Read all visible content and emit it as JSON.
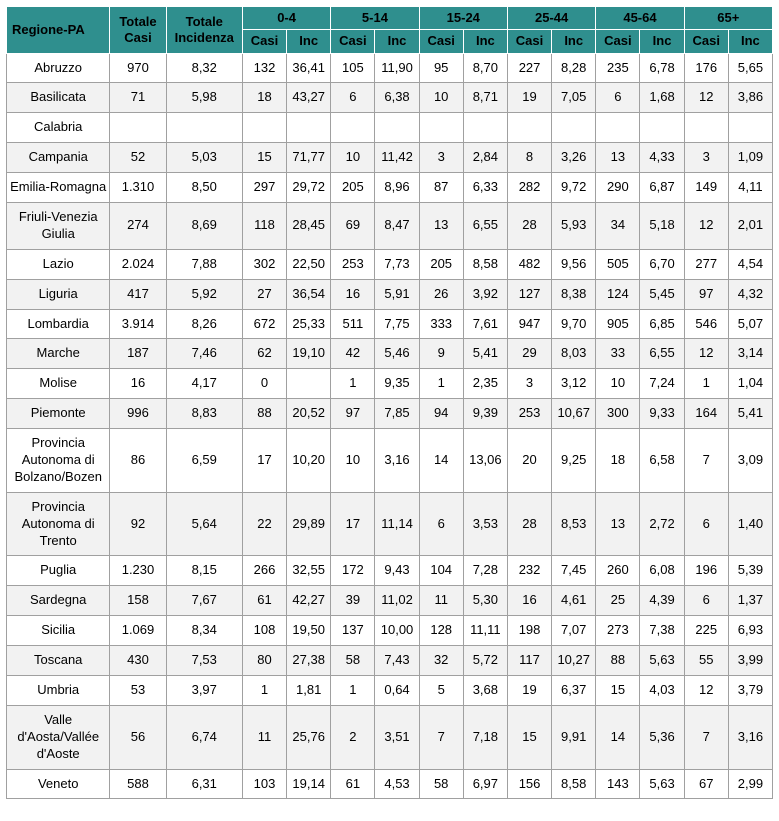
{
  "chart_data": {
    "type": "table",
    "header": {
      "region": "Regione-PA",
      "total_cases": "Totale Casi",
      "total_incidence": "Totale Incidenza",
      "age_groups": [
        "0-4",
        "5-14",
        "15-24",
        "25-44",
        "45-64",
        "65+"
      ],
      "subcolumns": [
        "Casi",
        "Inc"
      ]
    },
    "rows": [
      {
        "region": "Abruzzo",
        "values": [
          "970",
          "8,32",
          "132",
          "36,41",
          "105",
          "11,90",
          "95",
          "8,70",
          "227",
          "8,28",
          "235",
          "6,78",
          "176",
          "5,65"
        ]
      },
      {
        "region": "Basilicata",
        "values": [
          "71",
          "5,98",
          "18",
          "43,27",
          "6",
          "6,38",
          "10",
          "8,71",
          "19",
          "7,05",
          "6",
          "1,68",
          "12",
          "3,86"
        ]
      },
      {
        "region": "Calabria",
        "values": [
          "",
          "",
          "",
          "",
          "",
          "",
          "",
          "",
          "",
          "",
          "",
          "",
          "",
          ""
        ]
      },
      {
        "region": "Campania",
        "values": [
          "52",
          "5,03",
          "15",
          "71,77",
          "10",
          "11,42",
          "3",
          "2,84",
          "8",
          "3,26",
          "13",
          "4,33",
          "3",
          "1,09"
        ]
      },
      {
        "region": "Emilia-Romagna",
        "values": [
          "1.310",
          "8,50",
          "297",
          "29,72",
          "205",
          "8,96",
          "87",
          "6,33",
          "282",
          "9,72",
          "290",
          "6,87",
          "149",
          "4,11"
        ]
      },
      {
        "region": "Friuli-Venezia Giulia",
        "values": [
          "274",
          "8,69",
          "118",
          "28,45",
          "69",
          "8,47",
          "13",
          "6,55",
          "28",
          "5,93",
          "34",
          "5,18",
          "12",
          "2,01"
        ]
      },
      {
        "region": "Lazio",
        "values": [
          "2.024",
          "7,88",
          "302",
          "22,50",
          "253",
          "7,73",
          "205",
          "8,58",
          "482",
          "9,56",
          "505",
          "6,70",
          "277",
          "4,54"
        ]
      },
      {
        "region": "Liguria",
        "values": [
          "417",
          "5,92",
          "27",
          "36,54",
          "16",
          "5,91",
          "26",
          "3,92",
          "127",
          "8,38",
          "124",
          "5,45",
          "97",
          "4,32"
        ]
      },
      {
        "region": "Lombardia",
        "values": [
          "3.914",
          "8,26",
          "672",
          "25,33",
          "511",
          "7,75",
          "333",
          "7,61",
          "947",
          "9,70",
          "905",
          "6,85",
          "546",
          "5,07"
        ]
      },
      {
        "region": "Marche",
        "values": [
          "187",
          "7,46",
          "62",
          "19,10",
          "42",
          "5,46",
          "9",
          "5,41",
          "29",
          "8,03",
          "33",
          "6,55",
          "12",
          "3,14"
        ]
      },
      {
        "region": "Molise",
        "values": [
          "16",
          "4,17",
          "0",
          "",
          "1",
          "9,35",
          "1",
          "2,35",
          "3",
          "3,12",
          "10",
          "7,24",
          "1",
          "1,04"
        ]
      },
      {
        "region": "Piemonte",
        "values": [
          "996",
          "8,83",
          "88",
          "20,52",
          "97",
          "7,85",
          "94",
          "9,39",
          "253",
          "10,67",
          "300",
          "9,33",
          "164",
          "5,41"
        ]
      },
      {
        "region": "Provincia Autonoma di Bolzano/Bozen",
        "values": [
          "86",
          "6,59",
          "17",
          "10,20",
          "10",
          "3,16",
          "14",
          "13,06",
          "20",
          "9,25",
          "18",
          "6,58",
          "7",
          "3,09"
        ]
      },
      {
        "region": "Provincia Autonoma di Trento",
        "values": [
          "92",
          "5,64",
          "22",
          "29,89",
          "17",
          "11,14",
          "6",
          "3,53",
          "28",
          "8,53",
          "13",
          "2,72",
          "6",
          "1,40"
        ]
      },
      {
        "region": "Puglia",
        "values": [
          "1.230",
          "8,15",
          "266",
          "32,55",
          "172",
          "9,43",
          "104",
          "7,28",
          "232",
          "7,45",
          "260",
          "6,08",
          "196",
          "5,39"
        ]
      },
      {
        "region": "Sardegna",
        "values": [
          "158",
          "7,67",
          "61",
          "42,27",
          "39",
          "11,02",
          "11",
          "5,30",
          "16",
          "4,61",
          "25",
          "4,39",
          "6",
          "1,37"
        ]
      },
      {
        "region": "Sicilia",
        "values": [
          "1.069",
          "8,34",
          "108",
          "19,50",
          "137",
          "10,00",
          "128",
          "11,11",
          "198",
          "7,07",
          "273",
          "7,38",
          "225",
          "6,93"
        ]
      },
      {
        "region": "Toscana",
        "values": [
          "430",
          "7,53",
          "80",
          "27,38",
          "58",
          "7,43",
          "32",
          "5,72",
          "117",
          "10,27",
          "88",
          "5,63",
          "55",
          "3,99"
        ]
      },
      {
        "region": "Umbria",
        "values": [
          "53",
          "3,97",
          "1",
          "1,81",
          "1",
          "0,64",
          "5",
          "3,68",
          "19",
          "6,37",
          "15",
          "4,03",
          "12",
          "3,79"
        ]
      },
      {
        "region": "Valle d'Aosta/Vallée d'Aoste",
        "values": [
          "56",
          "6,74",
          "11",
          "25,76",
          "2",
          "3,51",
          "7",
          "7,18",
          "15",
          "9,91",
          "14",
          "5,36",
          "7",
          "3,16"
        ]
      },
      {
        "region": "Veneto",
        "values": [
          "588",
          "6,31",
          "103",
          "19,14",
          "61",
          "4,53",
          "58",
          "6,97",
          "156",
          "8,58",
          "143",
          "5,63",
          "67",
          "2,99"
        ]
      }
    ],
    "style": {
      "header_bg": "#2f8f8e",
      "header_text": "#000000",
      "alt_row_bg": "#f2f2f2",
      "grid_color": "#a0a0a0"
    },
    "layout_hints": {
      "grid": true,
      "striped_rows": true,
      "decimal_separator": ","
    }
  }
}
